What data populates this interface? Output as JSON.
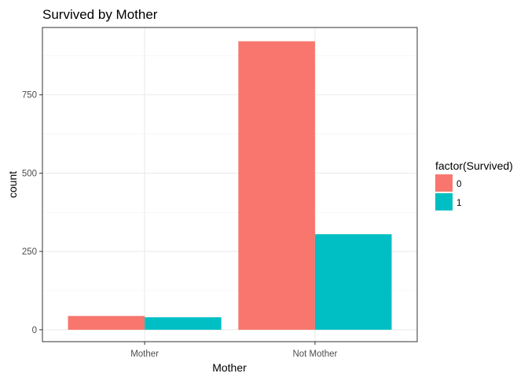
{
  "chart_data": {
    "type": "bar",
    "title": "Survived by Mother",
    "xlabel": "Mother",
    "ylabel": "count",
    "categories": [
      "Mother",
      "Not Mother"
    ],
    "series": [
      {
        "name": "0",
        "values": [
          44,
          921
        ],
        "color": "#F8766D"
      },
      {
        "name": "1",
        "values": [
          40,
          305
        ],
        "color": "#00BFC4"
      }
    ],
    "ylim": [
      -38,
      965
    ],
    "yticks": [
      0,
      250,
      500,
      750
    ],
    "ytick_labels": [
      "0",
      "250",
      "500",
      "750"
    ],
    "grid": true,
    "legend": {
      "title": "factor(Survived)",
      "position": "right"
    }
  }
}
